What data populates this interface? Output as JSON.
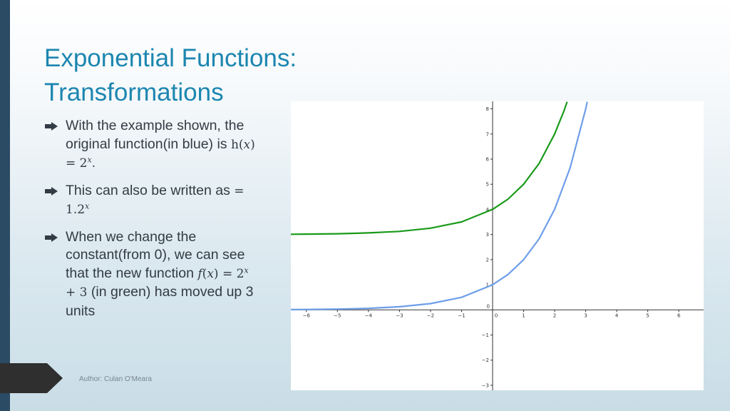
{
  "title": {
    "line1": "Exponential Functions:",
    "line2": "Transformations"
  },
  "bullets": [
    {
      "pre": "With the example shown, the original function(in blue) is ",
      "math": {
        "name": "h",
        "arg": "x",
        "base": "2",
        "exp": "x",
        "tail": "."
      }
    },
    {
      "pre": "This can also be written as ",
      "math": {
        "eq": "= 1.2",
        "exp": "x"
      }
    },
    {
      "pre": "When we change the constant(from 0), we can see that the new function ",
      "math": {
        "name": "f",
        "arg": "x",
        "base": "2",
        "exp": "x",
        "tail": " + 3"
      },
      "post": " (in green) has moved up 3 units"
    }
  ],
  "footer": {
    "author": "Author: Culan O'Meara"
  },
  "colors": {
    "accent": "#1c86b0",
    "sidebar": "#2b4a63",
    "blue_curve": "#6e9ee8",
    "green_curve": "#1a9a1a"
  },
  "chart_data": {
    "type": "line",
    "x_ticks": [
      -6,
      -5,
      -4,
      -3,
      -2,
      -1,
      0,
      1,
      2,
      3,
      4,
      5,
      6
    ],
    "y_ticks": [
      -3,
      -2,
      -1,
      0,
      1,
      2,
      3,
      4,
      5,
      6,
      7,
      8
    ],
    "tick_labels_x": [
      "−6",
      "−5",
      "−4",
      "−3",
      "−2",
      "−1",
      "0",
      "1",
      "2",
      "3",
      "4",
      "5",
      "6"
    ],
    "tick_labels_y": [
      "−3",
      "−2",
      "−1",
      "0",
      "1",
      "2",
      "3",
      "4",
      "5",
      "6",
      "7",
      "8"
    ],
    "xlim": [
      -6.5,
      6.8
    ],
    "ylim": [
      -3.2,
      8.3
    ],
    "grid": false,
    "series": [
      {
        "color": "#6e9ee8",
        "x": [
          -6.5,
          -6,
          -5,
          -4,
          -3,
          -2,
          -1,
          0,
          0.5,
          1,
          1.5,
          2,
          2.5,
          3,
          3.05
        ],
        "y": [
          0.011,
          0.016,
          0.031,
          0.063,
          0.125,
          0.25,
          0.5,
          1,
          1.41,
          2,
          2.83,
          4,
          5.66,
          8,
          8.28
        ]
      },
      {
        "color": "#1a9a1a",
        "x": [
          -6.5,
          -6,
          -5,
          -4,
          -3,
          -2,
          -1,
          0,
          0.5,
          1,
          1.5,
          2,
          2.3,
          2.4
        ],
        "y": [
          3.011,
          3.016,
          3.031,
          3.063,
          3.125,
          3.25,
          3.5,
          4,
          4.41,
          5,
          5.83,
          7,
          7.92,
          8.28
        ]
      }
    ]
  }
}
